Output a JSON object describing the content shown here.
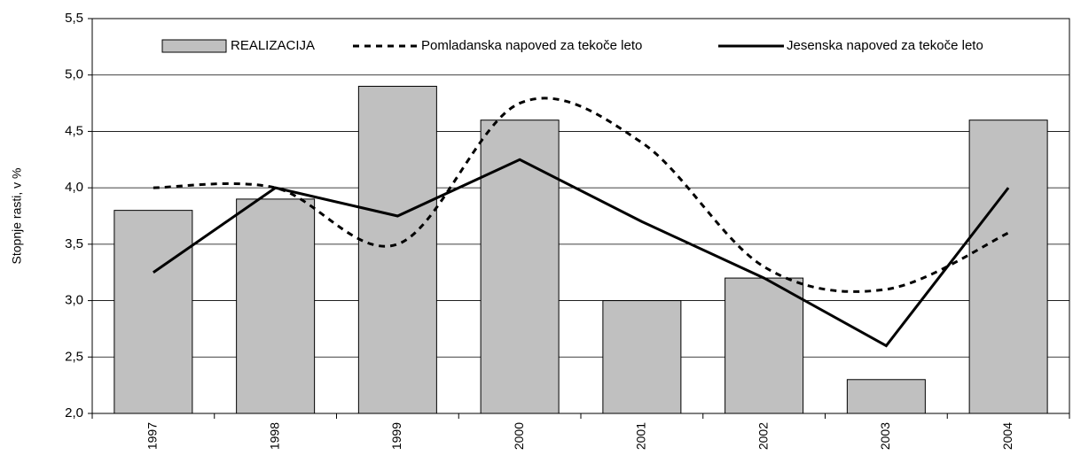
{
  "chart_data": {
    "type": "bar-line",
    "y_label": "Stopnje rasti, v %",
    "categories": [
      "1997",
      "1998",
      "1999",
      "2000",
      "2001",
      "2002",
      "2003",
      "2004"
    ],
    "series": [
      {
        "name": "REALIZACIJA",
        "type": "bar",
        "color": "#c0c0c0",
        "values": [
          3.8,
          3.9,
          4.9,
          4.6,
          3.0,
          3.2,
          2.3,
          4.6
        ]
      },
      {
        "name": "Pomladanska napoved za tekoče leto",
        "type": "line",
        "style": "dashed",
        "smooth": true,
        "color": "#000000",
        "values": [
          4.0,
          4.0,
          3.5,
          4.75,
          4.4,
          3.3,
          3.1,
          3.6
        ]
      },
      {
        "name": "Jesenska napoved za tekoče leto",
        "type": "line",
        "style": "solid",
        "color": "#000000",
        "values": [
          3.25,
          4.0,
          3.75,
          4.25,
          3.7,
          3.2,
          2.6,
          4.0
        ]
      }
    ],
    "ylim": [
      2.0,
      5.5
    ],
    "yticks": [
      {
        "value": 2.0,
        "label": "2,0"
      },
      {
        "value": 2.5,
        "label": "2,5"
      },
      {
        "value": 3.0,
        "label": "3,0"
      },
      {
        "value": 3.5,
        "label": "3,5"
      },
      {
        "value": 4.0,
        "label": "4,0"
      },
      {
        "value": 4.5,
        "label": "4,5"
      },
      {
        "value": 5.0,
        "label": "5,0"
      },
      {
        "value": 5.5,
        "label": "5,5"
      }
    ],
    "grid": true,
    "legend": "top"
  }
}
